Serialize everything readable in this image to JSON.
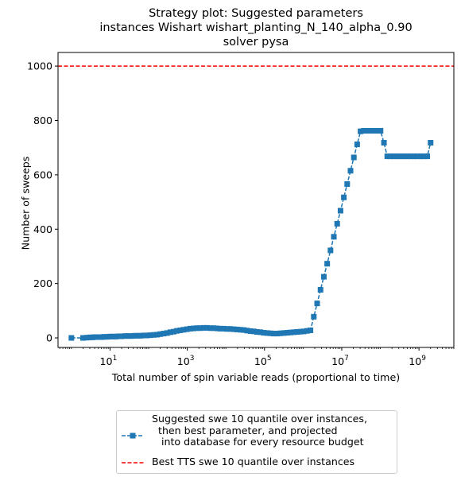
{
  "chart_data": {
    "type": "line",
    "title_lines": [
      "Strategy plot: Suggested parameters",
      "instances Wishart wishart_planting_N_140_alpha_0.90",
      "solver pysa"
    ],
    "xlabel": "Total number of spin variable reads (proportional to time)",
    "ylabel": "Number of sweeps",
    "xscale": "log",
    "xlim": [
      0.45,
      8000000000
    ],
    "ylim": [
      -35,
      1050
    ],
    "x_ticks": [
      {
        "value": 10,
        "base": "10",
        "exp": "1"
      },
      {
        "value": 1000,
        "base": "10",
        "exp": "3"
      },
      {
        "value": 100000,
        "base": "10",
        "exp": "5"
      },
      {
        "value": 10000000,
        "base": "10",
        "exp": "7"
      },
      {
        "value": 1000000000,
        "base": "10",
        "exp": "9"
      }
    ],
    "y_ticks": [
      "0",
      "200",
      "400",
      "600",
      "800",
      "1000"
    ],
    "grid": false,
    "legend_position": "below",
    "series": [
      {
        "name": "Suggested swe 10 quantile over instances,\n  then best parameter, and projected\n   into database for every resource budget",
        "color": "#1f77b4",
        "style": "dashed-line-square-markers",
        "x": [
          1,
          2,
          2.5,
          3,
          3.5,
          4,
          5,
          6,
          7,
          8.5,
          10,
          12,
          14,
          17,
          20,
          25,
          30,
          36,
          43,
          52,
          62,
          75,
          90,
          110,
          135,
          165,
          200,
          245,
          300,
          365,
          445,
          540,
          660,
          800,
          980,
          1200,
          1450,
          1780,
          2170,
          2650,
          3230,
          3950,
          4800,
          5900,
          7200,
          8800,
          10700,
          13000,
          16000,
          19500,
          23800,
          29000,
          35500,
          43300,
          52800,
          64400,
          78500,
          95800,
          117000,
          143000,
          174000,
          212000,
          259000,
          316000,
          386000,
          471000,
          574000,
          700000,
          854000,
          1040000,
          1270000,
          1550000,
          1890000,
          2310000,
          2820000,
          3440000,
          4200000,
          5120000,
          6250000,
          7620000,
          9300000,
          11350000,
          13850000,
          16900000,
          20600000,
          25100000,
          30700000,
          37400000,
          45700000,
          55700000,
          68000000,
          83000000,
          101000000,
          124000000,
          151000000,
          184000000,
          224000000,
          274000000,
          334000000,
          408000000,
          498000000,
          607000000,
          741000000,
          904000000,
          1100000000,
          1340000000,
          1640000000,
          2000000000
        ],
        "y": [
          0,
          0,
          1,
          2,
          2,
          3,
          3,
          3,
          4,
          4,
          5,
          5,
          5,
          6,
          6,
          7,
          7,
          7,
          8,
          8,
          8,
          9,
          9,
          10,
          11,
          12,
          14,
          16,
          18,
          21,
          23,
          26,
          28,
          30,
          32,
          34,
          35,
          36,
          36,
          37,
          37,
          36,
          36,
          35,
          34,
          34,
          33,
          33,
          32,
          31,
          30,
          29,
          27,
          25,
          24,
          22,
          21,
          19,
          18,
          17,
          16,
          16,
          17,
          18,
          19,
          20,
          21,
          22,
          23,
          24,
          26,
          28,
          78,
          127,
          177,
          225,
          273,
          322,
          372,
          420,
          468,
          517,
          566,
          615,
          664,
          712,
          760,
          762,
          762,
          762,
          762,
          762,
          762,
          718,
          668,
          668,
          668,
          668,
          668,
          668,
          668,
          668,
          668,
          668,
          668,
          668,
          668,
          718
        ]
      },
      {
        "name": "Best TTS swe 10 quantile over instances",
        "color": "#ff0000",
        "style": "dashed-hline",
        "y": 1000
      }
    ]
  }
}
